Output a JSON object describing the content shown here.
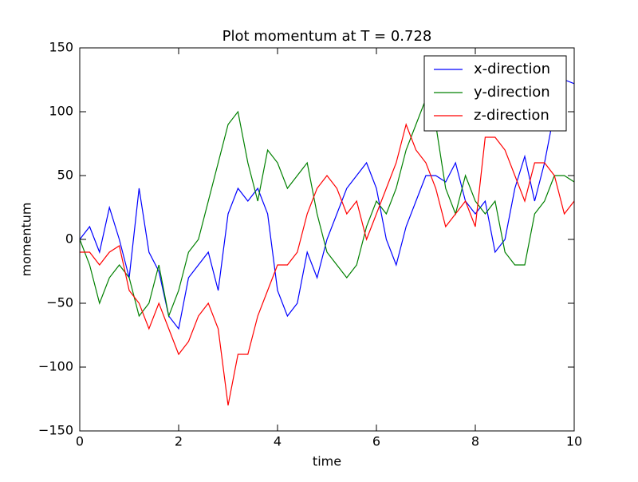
{
  "chart_data": {
    "type": "line",
    "title": "Plot momentum at T = 0.728",
    "x_label": "time",
    "y_label": "momentum",
    "x": [
      0,
      0.2,
      0.4,
      0.6,
      0.8,
      1.0,
      1.2,
      1.4,
      1.6,
      1.8,
      2.0,
      2.2,
      2.4,
      2.6,
      2.8,
      3.0,
      3.2,
      3.4,
      3.6,
      3.8,
      4.0,
      4.2,
      4.4,
      4.6,
      4.8,
      5.0,
      5.2,
      5.4,
      5.6,
      5.8,
      6.0,
      6.2,
      6.4,
      6.6,
      6.8,
      7.0,
      7.2,
      7.4,
      7.6,
      7.8,
      8.0,
      8.2,
      8.4,
      8.6,
      8.8,
      9.0,
      9.2,
      9.4,
      9.6,
      9.8,
      10
    ],
    "series": [
      {
        "name": "x-direction",
        "color": "#0000ff",
        "values": [
          0,
          10,
          -10,
          25,
          0,
          -30,
          40,
          -10,
          -25,
          -60,
          -70,
          -30,
          -20,
          -10,
          -40,
          20,
          40,
          30,
          40,
          20,
          -40,
          -60,
          -50,
          -10,
          -30,
          0,
          20,
          40,
          50,
          60,
          40,
          0,
          -20,
          10,
          30,
          50,
          50,
          45,
          60,
          30,
          20,
          30,
          -10,
          0,
          40,
          65,
          30,
          60,
          100,
          125,
          122
        ]
      },
      {
        "name": "y-direction",
        "color": "#008000",
        "values": [
          0,
          -20,
          -50,
          -30,
          -20,
          -30,
          -60,
          -50,
          -20,
          -60,
          -40,
          -10,
          0,
          30,
          60,
          90,
          100,
          60,
          30,
          70,
          60,
          40,
          50,
          60,
          20,
          -10,
          -20,
          -30,
          -20,
          10,
          30,
          20,
          40,
          70,
          90,
          110,
          90,
          40,
          20,
          50,
          30,
          20,
          30,
          -10,
          -20,
          -20,
          20,
          30,
          50,
          50,
          45
        ]
      },
      {
        "name": "z-direction",
        "color": "#ff0000",
        "values": [
          -10,
          -10,
          -20,
          -10,
          -5,
          -40,
          -50,
          -70,
          -50,
          -70,
          -90,
          -80,
          -60,
          -50,
          -70,
          -130,
          -90,
          -90,
          -60,
          -40,
          -20,
          -20,
          -10,
          20,
          40,
          50,
          40,
          20,
          30,
          0,
          20,
          40,
          60,
          90,
          70,
          60,
          40,
          10,
          20,
          30,
          10,
          80,
          80,
          70,
          50,
          30,
          60,
          60,
          50,
          20,
          30
        ]
      }
    ],
    "xlim": [
      0,
      10
    ],
    "xticks": [
      0,
      2,
      4,
      6,
      8,
      10
    ],
    "ylim": [
      -150,
      150
    ],
    "yticks": [
      {
        "value": -150,
        "label": "−150"
      },
      {
        "value": -100,
        "label": "−100"
      },
      {
        "value": -50,
        "label": "−50"
      },
      0,
      50,
      100,
      150
    ],
    "legend": "upper right"
  }
}
